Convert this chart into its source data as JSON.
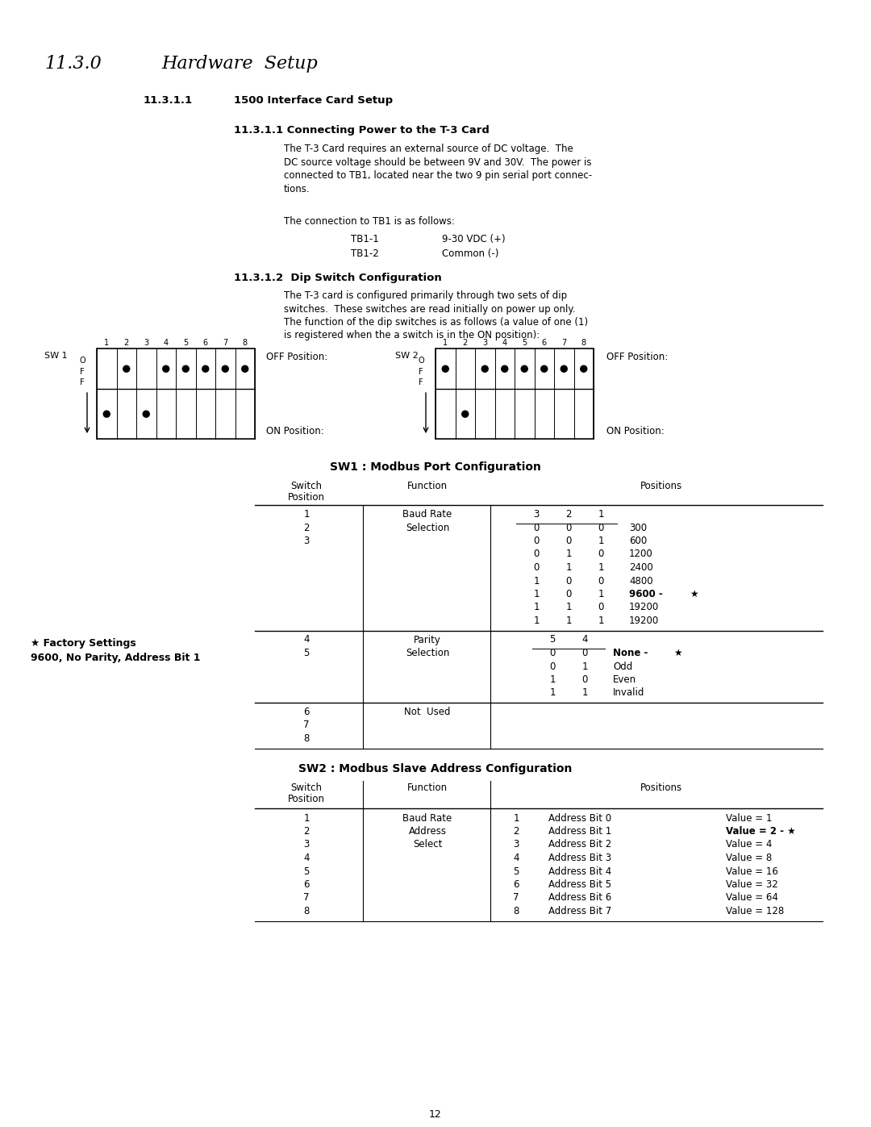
{
  "bg_color": "#ffffff",
  "title_section": "11.3.0",
  "title_text": "Hardware  Setup",
  "sub1_number": "11.3.1.1",
  "sub1_title": "1500 Interface Card Setup",
  "sub2_number": "11.3.1.1 Connecting Power to the T-3 Card",
  "sub2_body_lines": [
    "The T-3 Card requires an external source of DC voltage.  The",
    "DC source voltage should be between 9V and 30V.  The power is",
    "connected to TB1, located near the two 9 pin serial port connec-",
    "tions."
  ],
  "tb_intro": "The connection to TB1 is as follows:",
  "tb1_1": "TB1-1",
  "tb1_1_val": "9-30 VDC (+)",
  "tb1_2": "TB1-2",
  "tb1_2_val": "Common (-)",
  "sub3_number": "11.3.1.2  Dip Switch Configuration",
  "sub3_body_lines": [
    "The T-3 card is configured primarily through two sets of dip",
    "switches.  These switches are read initially on power up only.",
    "The function of the dip switches is as follows (a value of one (1)",
    "is registered when the a switch is in the ON position):"
  ],
  "sw1_label": "SW 1",
  "sw2_label": "SW 2",
  "sw1_table_title": "SW1 : Modbus Port Configuration",
  "sw2_table_title": "SW2 : Modbus Slave Address Configuration",
  "factory_line1": "★ Factory Settings",
  "factory_line2": "9600, No Parity, Address Bit 1",
  "page_num": "12",
  "sw1_upper_dots": [
    2,
    4,
    5,
    6,
    7,
    8
  ],
  "sw1_lower_dots": [
    1,
    3
  ],
  "sw2_upper_dots": [
    1,
    3,
    4,
    5,
    6,
    7,
    8
  ],
  "sw2_lower_dots": [
    2
  ],
  "baud_rows": [
    {
      "pos": "1",
      "func": "Baud Rate",
      "b3": "3",
      "b2": "2",
      "b1": "1",
      "val": "",
      "bold": false,
      "star": false,
      "header": true
    },
    {
      "pos": "2",
      "func": "Selection",
      "b3": "0",
      "b2": "0",
      "b1": "0",
      "val": "300",
      "bold": false,
      "star": false,
      "header": false
    },
    {
      "pos": "3",
      "func": "",
      "b3": "0",
      "b2": "0",
      "b1": "1",
      "val": "600",
      "bold": false,
      "star": false,
      "header": false
    },
    {
      "pos": "",
      "func": "",
      "b3": "0",
      "b2": "1",
      "b1": "0",
      "val": "1200",
      "bold": false,
      "star": false,
      "header": false
    },
    {
      "pos": "",
      "func": "",
      "b3": "0",
      "b2": "1",
      "b1": "1",
      "val": "2400",
      "bold": false,
      "star": false,
      "header": false
    },
    {
      "pos": "",
      "func": "",
      "b3": "1",
      "b2": "0",
      "b1": "0",
      "val": "4800",
      "bold": false,
      "star": false,
      "header": false
    },
    {
      "pos": "",
      "func": "",
      "b3": "1",
      "b2": "0",
      "b1": "1",
      "val": "9600 - ",
      "bold": true,
      "star": true,
      "header": false
    },
    {
      "pos": "",
      "func": "",
      "b3": "1",
      "b2": "1",
      "b1": "0",
      "val": "19200",
      "bold": false,
      "star": false,
      "header": false
    },
    {
      "pos": "",
      "func": "",
      "b3": "1",
      "b2": "1",
      "b1": "1",
      "val": "19200",
      "bold": false,
      "star": false,
      "header": false
    }
  ],
  "parity_rows": [
    {
      "pos": "4",
      "func": "Parity",
      "b2": "5",
      "b1": "4",
      "val": "",
      "bold": false,
      "star": false,
      "header": true
    },
    {
      "pos": "5",
      "func": "Selection",
      "b2": "0",
      "b1": "0",
      "val": "None - ",
      "bold": true,
      "star": true,
      "header": false
    },
    {
      "pos": "",
      "func": "",
      "b2": "0",
      "b1": "1",
      "val": "Odd",
      "bold": false,
      "star": false,
      "header": false
    },
    {
      "pos": "",
      "func": "",
      "b2": "1",
      "b1": "0",
      "val": "Even",
      "bold": false,
      "star": false,
      "header": false
    },
    {
      "pos": "",
      "func": "",
      "b2": "1",
      "b1": "1",
      "val": "Invalid",
      "bold": false,
      "star": false,
      "header": false
    }
  ],
  "notused_rows": [
    {
      "pos": "6",
      "func": "Not  Used"
    },
    {
      "pos": "7",
      "func": ""
    },
    {
      "pos": "8",
      "func": ""
    }
  ],
  "sw2_rows": [
    {
      "pos": "1",
      "func": "Baud Rate",
      "sw": "1",
      "addr": "Address Bit 0",
      "val": "Value = 1",
      "bold": false
    },
    {
      "pos": "2",
      "func": "Address",
      "sw": "2",
      "addr": "Address Bit 1",
      "val": "Value = 2 - ★",
      "bold": true
    },
    {
      "pos": "3",
      "func": "Select",
      "sw": "3",
      "addr": "Address Bit 2",
      "val": "Value = 4",
      "bold": false
    },
    {
      "pos": "4",
      "func": "",
      "sw": "4",
      "addr": "Address Bit 3",
      "val": "Value = 8",
      "bold": false
    },
    {
      "pos": "5",
      "func": "",
      "sw": "5",
      "addr": "Address Bit 4",
      "val": "Value = 16",
      "bold": false
    },
    {
      "pos": "6",
      "func": "",
      "sw": "6",
      "addr": "Address Bit 5",
      "val": "Value = 32",
      "bold": false
    },
    {
      "pos": "7",
      "func": "",
      "sw": "7",
      "addr": "Address Bit 6",
      "val": "Value = 64",
      "bold": false
    },
    {
      "pos": "8",
      "func": "",
      "sw": "8",
      "addr": "Address Bit 7",
      "val": "Value = 128",
      "bold": false
    }
  ]
}
